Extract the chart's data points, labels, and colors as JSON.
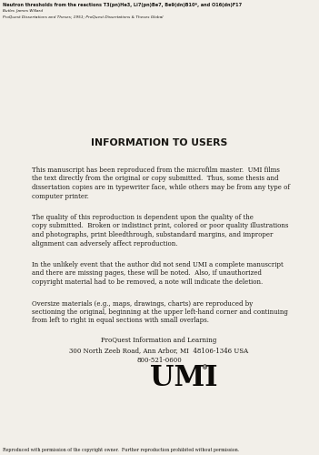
{
  "bg_color": "#f2efe9",
  "header_line1": "Neutron thresholds from the reactions T3(pn)He3, Li7(pn)Be7, Be9(dn)B10*, and O16(dn)F17",
  "header_line2": "Butler, James Willard",
  "header_line3": "ProQuest Dissertations and Theses; 1951; ProQuest Dissertations & Theses Global",
  "main_title": "INFORMATION TO USERS",
  "para1": "This manuscript has been reproduced from the microfilm master.  UMI films\nthe text directly from the original or copy submitted.  Thus, some thesis and\ndissertation copies are in typewriter face, while others may be from any type of\ncomputer printer.",
  "para2": "The quality of this reproduction is dependent upon the quality of the\ncopy submitted.  Broken or indistinct print, colored or poor quality illustrations\nand photographs, print bleedthrough, substandard margins, and improper\nalignment can adversely affect reproduction.",
  "para3": "In the unlikely event that the author did not send UMI a complete manuscript\nand there are missing pages, these will be noted.  Also, if unauthorized\ncopyright material had to be removed, a note will indicate the deletion.",
  "para4": "Oversize materials (e.g., maps, drawings, charts) are reproduced by\nsectioning the original, beginning at the upper left-hand corner and continuing\nfrom left to right in equal sections with small overlaps.",
  "footer_line1": "ProQuest Information and Learning",
  "footer_line2": "300 North Zeeb Road, Ann Arbor, MI  48106-1346 USA",
  "footer_line3": "800-521-0600",
  "umi_text": "UMI",
  "umi_symbol": "®",
  "footer_bottom": "Reproduced with permission of the copyright owner.  Further reproduction prohibited without permission.",
  "text_color": "#1a1814",
  "header_color": "#1a1814",
  "header_bold": "#000000"
}
